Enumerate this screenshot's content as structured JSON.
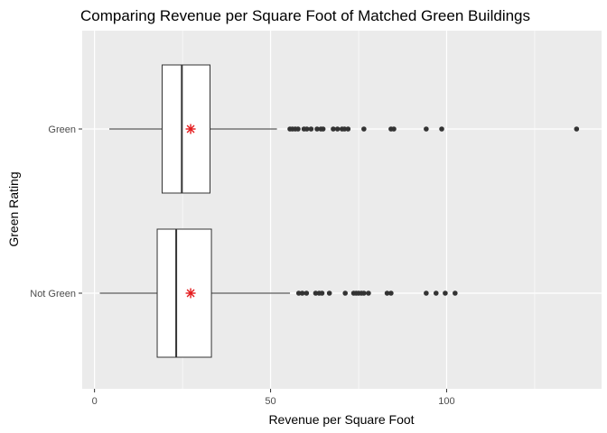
{
  "chart_data": {
    "type": "boxplot",
    "orientation": "horizontal",
    "title": "Comparing Revenue per Square Foot of Matched Green Buildings",
    "xlabel": "Revenue per Square Foot",
    "ylabel": "Green Rating",
    "xlim": [
      -3.5,
      144
    ],
    "x_ticks": [
      0,
      50,
      100
    ],
    "grid": true,
    "legend": "none",
    "colors": {
      "panel": "#ebebeb",
      "grid": "#ffffff",
      "box_fill": "#ffffff",
      "box_line": "#333333",
      "outlier": "#333333",
      "mean_marker": "#e41a1c"
    },
    "categories": [
      "Green",
      "Not Green"
    ],
    "boxes": [
      {
        "category": "Green",
        "whisker_low": 4.2,
        "q1": 19.2,
        "median": 24.8,
        "q3": 32.8,
        "whisker_high": 51.8,
        "mean": 27.3,
        "outliers": [
          55.5,
          56.2,
          57.0,
          57.8,
          59.5,
          60.3,
          61.5,
          63.2,
          64.3,
          64.9,
          67.8,
          69.0,
          70.3,
          71.0,
          72.0,
          76.5,
          84.2,
          85.0,
          94.2,
          98.6,
          136.9
        ]
      },
      {
        "category": "Not Green",
        "whisker_low": 1.5,
        "q1": 17.8,
        "median": 23.2,
        "q3": 33.2,
        "whisker_high": 55.5,
        "mean": 27.3,
        "outliers": [
          58.0,
          59.0,
          60.2,
          62.8,
          63.8,
          64.6,
          66.7,
          71.2,
          73.6,
          74.3,
          75.0,
          75.8,
          76.5,
          77.8,
          83.1,
          84.2,
          94.2,
          97.0,
          99.6,
          102.4
        ]
      }
    ]
  }
}
